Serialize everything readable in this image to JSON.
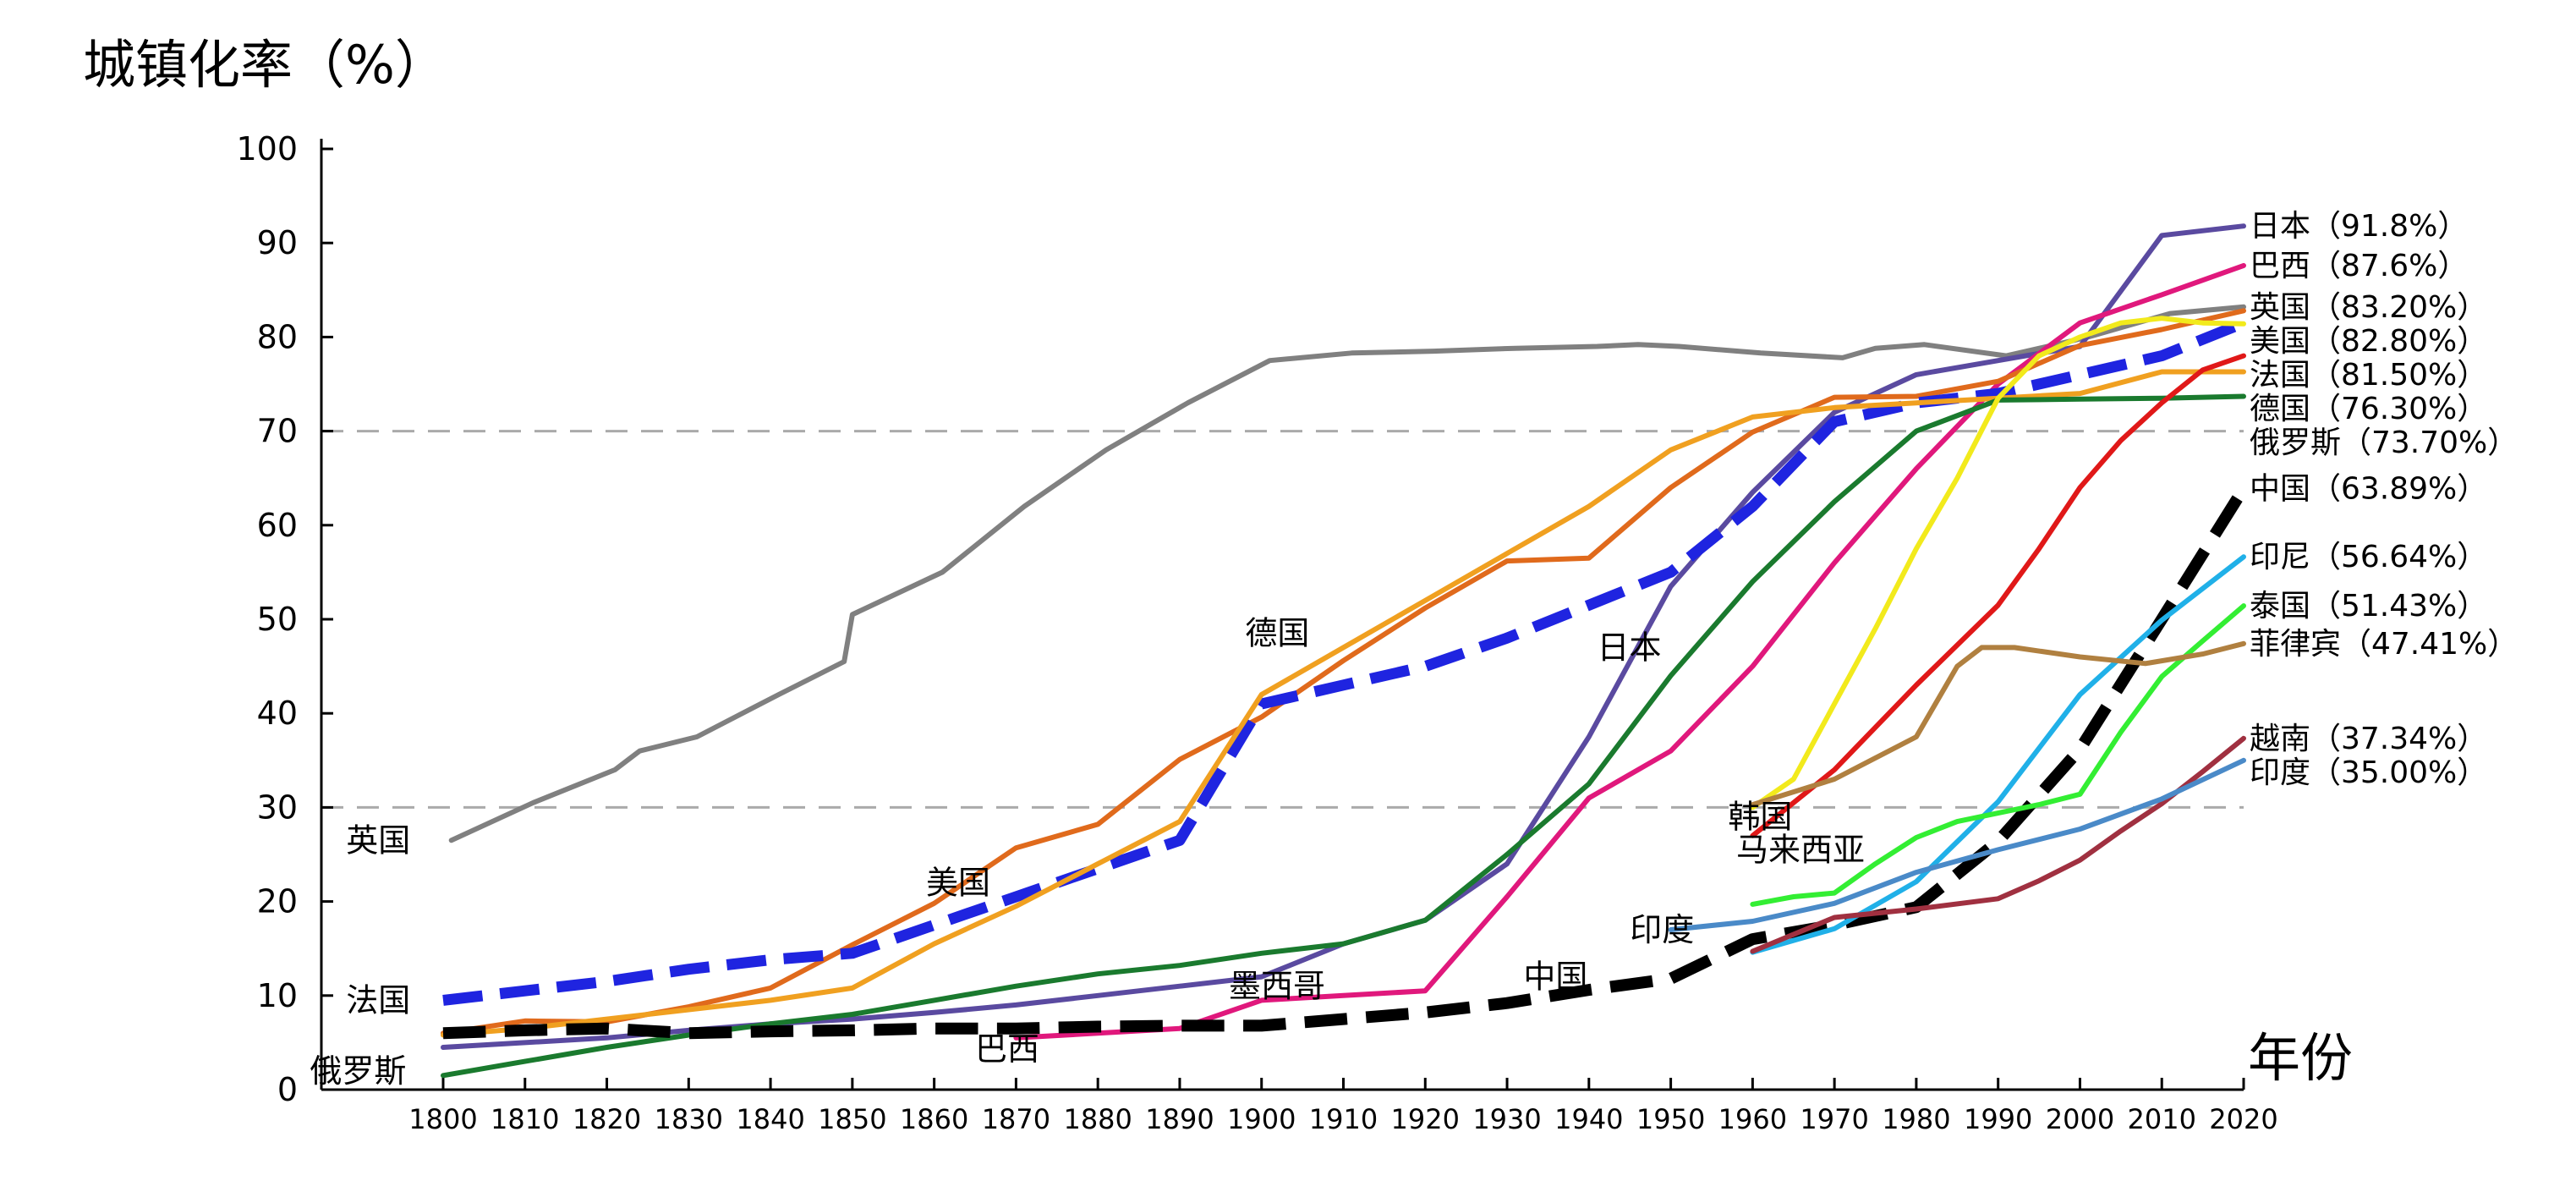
{
  "chart_data": {
    "type": "line",
    "ylabel": "城镇化率（%）",
    "xlabel": "年份",
    "xlim": [
      1800,
      2020
    ],
    "ylim": [
      0,
      100
    ],
    "xticks": [
      1800,
      1810,
      1820,
      1830,
      1840,
      1850,
      1860,
      1870,
      1880,
      1890,
      1900,
      1910,
      1920,
      1930,
      1940,
      1950,
      1960,
      1970,
      1980,
      1990,
      2000,
      2010,
      2020
    ],
    "yticks": [
      0,
      10,
      20,
      30,
      40,
      50,
      60,
      70,
      80,
      90,
      100
    ],
    "reference_lines": [
      30,
      70
    ],
    "grid": false,
    "series": [
      {
        "name": "英国",
        "end_label": "英国（83.20%）",
        "color": "#808080",
        "width": 6,
        "dashed": false,
        "x": [
          1801,
          1811,
          1821,
          1824,
          1831,
          1841,
          1849,
          1850,
          1861,
          1871,
          1881,
          1891,
          1901,
          1911,
          1921,
          1931,
          1941,
          1946,
          1951,
          1961,
          1971,
          1975,
          1981,
          1991,
          2001,
          2011,
          2020
        ],
        "y": [
          26.5,
          30.5,
          34,
          36,
          37.5,
          42,
          45.5,
          50.5,
          55,
          62,
          68,
          73,
          77.5,
          78.3,
          78.5,
          78.8,
          79,
          79.2,
          79,
          78.3,
          77.8,
          78.8,
          79.2,
          78,
          80,
          82.5,
          83.2
        ]
      },
      {
        "name": "日本",
        "end_label": "日本（91.8%）",
        "color": "#5a4aa0",
        "width": 6,
        "dashed": false,
        "x": [
          1800,
          1810,
          1820,
          1830,
          1840,
          1850,
          1860,
          1870,
          1880,
          1890,
          1900,
          1910,
          1920,
          1930,
          1940,
          1950,
          1960,
          1970,
          1980,
          1990,
          2000,
          2010,
          2020
        ],
        "y": [
          4.5,
          5,
          5.5,
          6.3,
          7,
          7.5,
          8.2,
          9,
          10,
          11,
          12,
          15.5,
          18,
          24,
          37.5,
          53.5,
          63.5,
          72,
          76,
          77.5,
          79,
          90.8,
          91.8
        ]
      },
      {
        "name": "巴西",
        "end_label": "巴西（87.6%）",
        "color": "#e0187c",
        "width": 6,
        "dashed": false,
        "x": [
          1870,
          1880,
          1890,
          1900,
          1910,
          1920,
          1930,
          1940,
          1950,
          1960,
          1970,
          1980,
          1990,
          2000,
          2010,
          2020
        ],
        "y": [
          5.5,
          6,
          6.5,
          9.5,
          10,
          10.5,
          20.5,
          31,
          36,
          45,
          56,
          66,
          75,
          81.5,
          84.5,
          87.6
        ]
      },
      {
        "name": "美国",
        "end_label": "美国（82.80%）",
        "color": "#e06a1c",
        "width": 6,
        "dashed": false,
        "x": [
          1800,
          1810,
          1820,
          1830,
          1840,
          1850,
          1860,
          1870,
          1880,
          1890,
          1900,
          1910,
          1920,
          1930,
          1940,
          1950,
          1960,
          1970,
          1980,
          1990,
          2000,
          2010,
          2020
        ],
        "y": [
          6,
          7.3,
          7.2,
          8.8,
          10.8,
          15.4,
          19.8,
          25.7,
          28.2,
          35.1,
          39.6,
          45.6,
          51.2,
          56.2,
          56.5,
          64,
          69.9,
          73.6,
          73.7,
          75.3,
          79.1,
          80.8,
          82.8
        ]
      },
      {
        "name": "法国",
        "end_label": "法国（81.50%）",
        "color": "#1f24e0",
        "width": 13,
        "dashed": true,
        "x": [
          1800,
          1810,
          1820,
          1830,
          1840,
          1850,
          1860,
          1870,
          1880,
          1890,
          1900,
          1910,
          1920,
          1930,
          1940,
          1950,
          1960,
          1970,
          1980,
          1990,
          2000,
          2010,
          2020
        ],
        "y": [
          9.5,
          10.5,
          11.5,
          12.8,
          13.8,
          14.5,
          17.5,
          20.5,
          23.5,
          26.5,
          41,
          43,
          45,
          48,
          51.5,
          55,
          62,
          71,
          73,
          74,
          76,
          78,
          81.5
        ]
      },
      {
        "name": "德国",
        "end_label": "德国（76.30%）",
        "color": "#f0a020",
        "width": 6,
        "dashed": false,
        "x": [
          1800,
          1810,
          1820,
          1830,
          1840,
          1850,
          1860,
          1870,
          1880,
          1890,
          1900,
          1910,
          1920,
          1930,
          1940,
          1950,
          1960,
          1970,
          1980,
          1990,
          2000,
          2010,
          2020
        ],
        "y": [
          5.8,
          6.5,
          7.5,
          8.5,
          9.5,
          10.8,
          15.5,
          19.5,
          24,
          28.5,
          42,
          47,
          52,
          57,
          62,
          68,
          71.5,
          72.5,
          73,
          73.5,
          74,
          76.3,
          76.3
        ]
      },
      {
        "name": "俄罗斯",
        "end_label": "俄罗斯（73.70%）",
        "color": "#1a7a2e",
        "width": 6,
        "dashed": false,
        "x": [
          1800,
          1810,
          1820,
          1830,
          1840,
          1850,
          1860,
          1870,
          1880,
          1890,
          1900,
          1910,
          1920,
          1930,
          1940,
          1950,
          1960,
          1970,
          1980,
          1990,
          2000,
          2010,
          2020
        ],
        "y": [
          1.5,
          3,
          4.5,
          5.8,
          7,
          8,
          9.5,
          11,
          12.3,
          13.2,
          14.5,
          15.5,
          18,
          25,
          32.5,
          44,
          54,
          62.5,
          70,
          73.3,
          73.4,
          73.5,
          73.7
        ]
      },
      {
        "name": "韩国",
        "end_label": "",
        "color": "#f2ea1c",
        "width": 6,
        "dashed": false,
        "x": [
          1960,
          1965,
          1970,
          1975,
          1980,
          1985,
          1990,
          1995,
          2000,
          2005,
          2010,
          2015,
          2020
        ],
        "y": [
          30,
          33,
          41,
          49,
          57.5,
          65,
          73.5,
          78,
          80,
          81.5,
          82,
          81.5,
          81.4
        ]
      },
      {
        "name": "马来西亚",
        "end_label": "",
        "color": "#e01818",
        "width": 6,
        "dashed": false,
        "x": [
          1960,
          1970,
          1980,
          1990,
          1995,
          2000,
          2005,
          2010,
          2015,
          2020
        ],
        "y": [
          27,
          34,
          43,
          51.5,
          57.5,
          64,
          69,
          73,
          76.5,
          78
        ]
      },
      {
        "name": "中国",
        "end_label": "中国（63.89%）",
        "color": "#000000",
        "width": 14,
        "dashed": true,
        "x": [
          1800,
          1810,
          1820,
          1830,
          1840,
          1850,
          1860,
          1870,
          1880,
          1890,
          1900,
          1910,
          1920,
          1930,
          1940,
          1950,
          1960,
          1970,
          1980,
          1990,
          2000,
          2010,
          2020
        ],
        "y": [
          6,
          6.3,
          6.5,
          6,
          6.2,
          6.3,
          6.5,
          6.5,
          6.7,
          6.8,
          6.8,
          7.5,
          8.2,
          9.2,
          10.6,
          11.8,
          16,
          17.5,
          19.4,
          26.4,
          36.2,
          50,
          63.89
        ]
      },
      {
        "name": "印尼",
        "end_label": "印尼（56.64%）",
        "color": "#20b0e8",
        "width": 6,
        "dashed": false,
        "x": [
          1960,
          1970,
          1980,
          1990,
          2000,
          2010,
          2020
        ],
        "y": [
          14.6,
          17.1,
          22.1,
          30.6,
          42,
          49.9,
          56.64
        ]
      },
      {
        "name": "泰国",
        "end_label": "泰国（51.43%）",
        "color": "#33ee33",
        "width": 6,
        "dashed": false,
        "x": [
          1960,
          1965,
          1970,
          1975,
          1980,
          1985,
          1990,
          1995,
          2000,
          2005,
          2010,
          2015,
          2020
        ],
        "y": [
          19.7,
          20.5,
          20.9,
          24,
          26.8,
          28.5,
          29.4,
          30.3,
          31.4,
          38,
          43.9,
          47.7,
          51.43
        ]
      },
      {
        "name": "菲律宾",
        "end_label": "菲律宾（47.41%）",
        "color": "#b08040",
        "width": 6,
        "dashed": false,
        "x": [
          1960,
          1970,
          1980,
          1985,
          1988,
          1992,
          2000,
          2008,
          2015,
          2020
        ],
        "y": [
          30.3,
          33,
          37.5,
          45,
          47,
          47,
          46,
          45.3,
          46.3,
          47.41
        ]
      },
      {
        "name": "越南",
        "end_label": "越南（37.34%）",
        "color": "#a03040",
        "width": 6,
        "dashed": false,
        "x": [
          1960,
          1970,
          1980,
          1990,
          1995,
          2000,
          2005,
          2010,
          2015,
          2020
        ],
        "y": [
          14.7,
          18.3,
          19.2,
          20.3,
          22.2,
          24.4,
          27.5,
          30.4,
          33.8,
          37.34
        ]
      },
      {
        "name": "印度",
        "end_label": "印度（35.00%）",
        "color": "#4a8ac8",
        "width": 6,
        "dashed": false,
        "x": [
          1950,
          1960,
          1970,
          1980,
          1990,
          2000,
          2010,
          2020
        ],
        "y": [
          17,
          17.9,
          19.8,
          23.1,
          25.5,
          27.7,
          30.9,
          35
        ]
      }
    ],
    "annotations": [
      {
        "text": "英国",
        "x": 1796,
        "y": 26.5
      },
      {
        "text": "法国",
        "x": 1796,
        "y": 9.5
      },
      {
        "text": "俄罗斯",
        "x": 1795.5,
        "y": 2
      },
      {
        "text": "美国",
        "x": 1859,
        "y": 22
      },
      {
        "text": "德国",
        "x": 1898,
        "y": 48.5
      },
      {
        "text": "日本",
        "x": 1941,
        "y": 47
      },
      {
        "text": "墨西哥",
        "x": 1896,
        "y": 11
      },
      {
        "text": "巴西",
        "x": 1865,
        "y": 4.3
      },
      {
        "text": "中国",
        "x": 1932,
        "y": 12
      },
      {
        "text": "印度",
        "x": 1945,
        "y": 17
      },
      {
        "text": "韩国",
        "x": 1957,
        "y": 29
      },
      {
        "text": "马来西亚",
        "x": 1958,
        "y": 25.5
      }
    ]
  }
}
